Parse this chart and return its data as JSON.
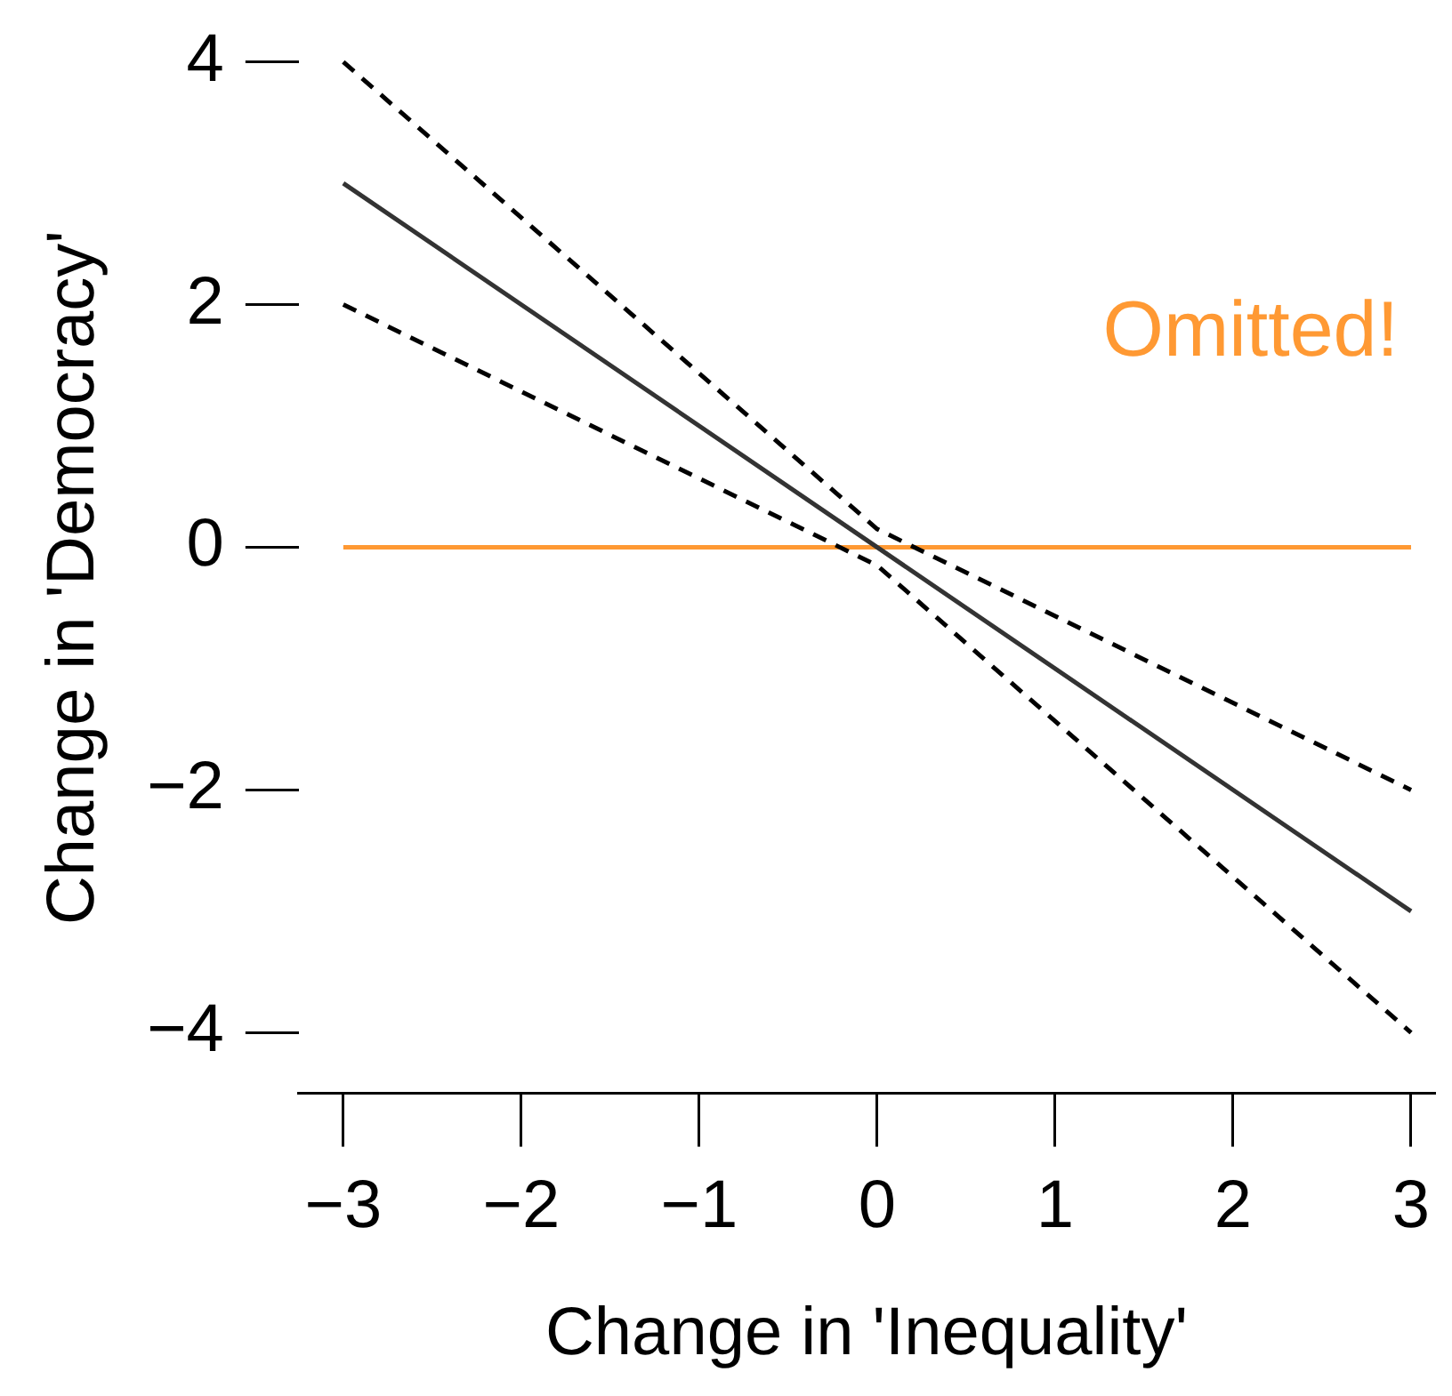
{
  "chart_data": {
    "type": "line",
    "xlabel": "Change in 'Inequality'",
    "ylabel": "Change in 'Democracy'",
    "xlim": [
      -3.25,
      3.13
    ],
    "ylim": [
      -4.5,
      4
    ],
    "xticks": [
      {
        "value": -3,
        "label": "−3"
      },
      {
        "value": -2,
        "label": "−2"
      },
      {
        "value": -1,
        "label": "−1"
      },
      0,
      1,
      2,
      3
    ],
    "yticks": [
      {
        "value": -4,
        "label": "−4"
      },
      {
        "value": -2,
        "label": "−2"
      },
      0,
      2,
      4
    ],
    "grid": false,
    "legend": false,
    "marker": "none",
    "series": [
      {
        "color": "#333333",
        "x": [
          -3,
          3
        ],
        "values": [
          3,
          -3
        ],
        "line_style": "solid"
      },
      {
        "color": "#000000",
        "x": [
          -3,
          0,
          3
        ],
        "values": [
          4,
          0.15,
          -2
        ],
        "line_style": "dashed"
      },
      {
        "color": "#000000",
        "x": [
          -3,
          0,
          3
        ],
        "values": [
          2,
          -0.15,
          -4
        ],
        "line_style": "dashed"
      },
      {
        "name": "Omitted!",
        "color": "#ff9933",
        "x": [
          -3,
          3
        ],
        "values": [
          0,
          0
        ],
        "line_style": "solid"
      }
    ]
  }
}
